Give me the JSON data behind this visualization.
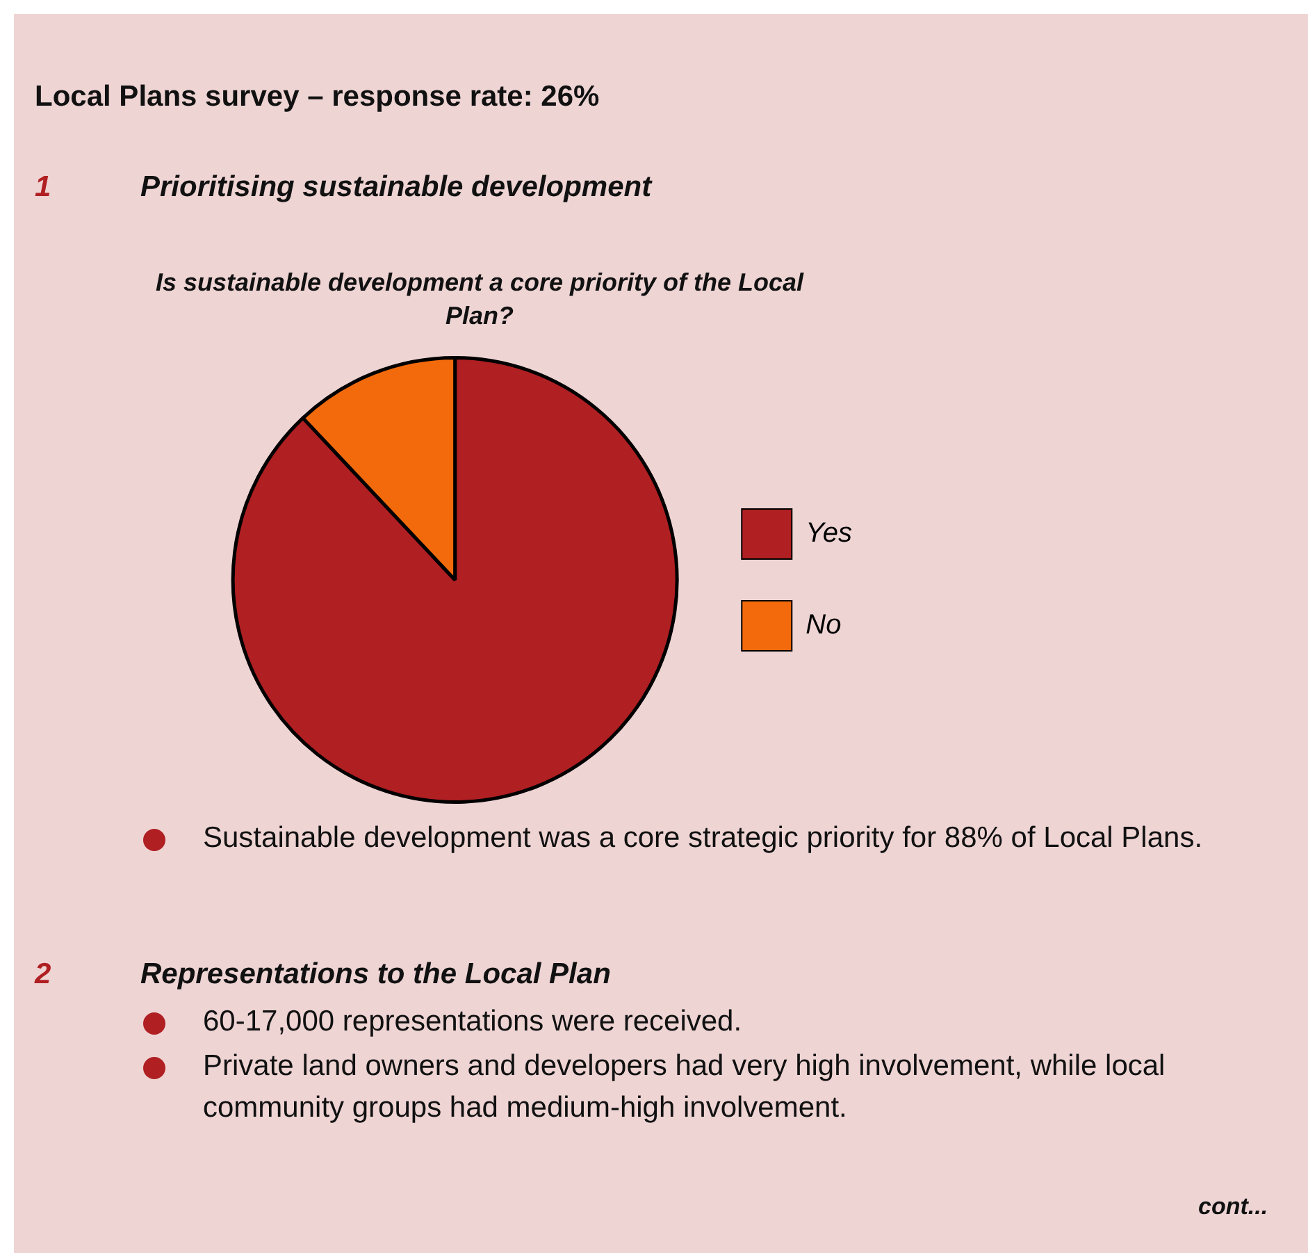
{
  "chart_data": {
    "type": "pie",
    "title": "Is sustainable development a core priority of the Local Plan?",
    "categories": [
      "Yes",
      "No"
    ],
    "values": [
      88,
      12
    ],
    "colors": [
      "#b01f22",
      "#f26a0c"
    ],
    "legend": "right",
    "annotations": [
      "Local Plans survey – response rate: 26%",
      "1",
      "Prioritising sustainable development",
      "Sustainable development was a core strategic priority for 88% of Local Plans.",
      "2",
      "Representations to the Local Plan",
      "60-17,000 representations were received.",
      "Private land owners and developers had very high involvement, while local community groups had medium-high involvement.",
      "cont..."
    ]
  }
}
